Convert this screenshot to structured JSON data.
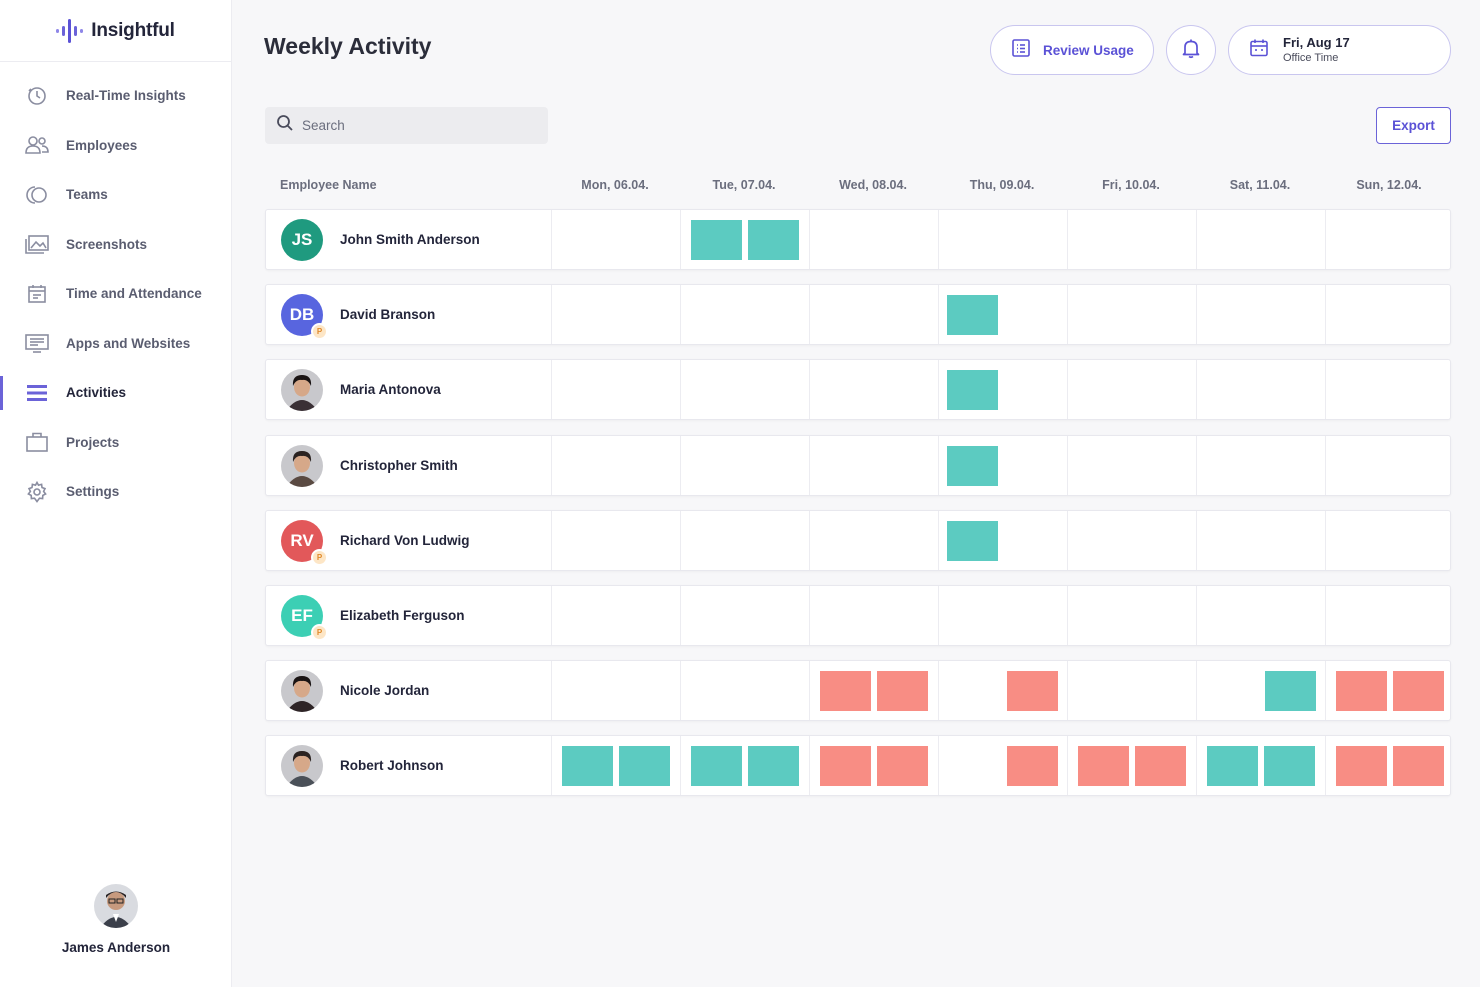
{
  "app": {
    "name": "Insightful"
  },
  "colors": {
    "accent": "#5b52d6",
    "productive": "#5ccbc1",
    "unproductive": "#f88d84"
  },
  "sidebar": {
    "items": [
      {
        "label": "Real-Time Insights",
        "icon": "clock-icon",
        "active": false
      },
      {
        "label": "Employees",
        "icon": "users-icon",
        "active": false
      },
      {
        "label": "Teams",
        "icon": "teams-icon",
        "active": false
      },
      {
        "label": "Screenshots",
        "icon": "image-icon",
        "active": false
      },
      {
        "label": "Time and Attendance",
        "icon": "calendar-icon",
        "active": false
      },
      {
        "label": "Apps and Websites",
        "icon": "monitor-icon",
        "active": false
      },
      {
        "label": "Activities",
        "icon": "list-icon",
        "active": true
      },
      {
        "label": "Projects",
        "icon": "briefcase-icon",
        "active": false
      },
      {
        "label": "Settings",
        "icon": "gear-icon",
        "active": false
      }
    ],
    "user": {
      "name": "James Anderson"
    }
  },
  "header": {
    "title": "Weekly Activity",
    "review_label": "Review Usage",
    "date_main": "Fri, Aug 17",
    "date_sub": "Office Time"
  },
  "search": {
    "placeholder": "Search"
  },
  "export_label": "Export",
  "table": {
    "name_header": "Employee Name",
    "days": [
      "Mon, 06.04.",
      "Tue, 07.04.",
      "Wed, 08.04.",
      "Thu, 09.04.",
      "Fri, 10.04.",
      "Sat, 11.04.",
      "Sun, 12.04."
    ],
    "rows": [
      {
        "name": "John Smith Anderson",
        "initials": "JS",
        "avatar_color": "#1f9a7f",
        "badge": "",
        "activity": [
          [],
          [
            "teal",
            "teal"
          ],
          [],
          [],
          [],
          [],
          []
        ]
      },
      {
        "name": "David Branson",
        "initials": "DB",
        "avatar_color": "#5865df",
        "badge": "P",
        "activity": [
          [],
          [],
          [],
          [
            "teal"
          ],
          [],
          [],
          []
        ]
      },
      {
        "name": "Maria Antonova",
        "initials": "",
        "avatar_color": "#3a3035",
        "badge": "",
        "activity": [
          [],
          [],
          [],
          [
            "teal"
          ],
          [],
          [],
          []
        ]
      },
      {
        "name": "Christopher Smith",
        "initials": "",
        "avatar_color": "#5a4a42",
        "badge": "",
        "activity": [
          [],
          [],
          [],
          [
            "teal"
          ],
          [],
          [],
          []
        ]
      },
      {
        "name": "Richard Von Ludwig",
        "initials": "RV",
        "avatar_color": "#e2585a",
        "badge": "P",
        "activity": [
          [],
          [],
          [],
          [
            "teal"
          ],
          [],
          [],
          []
        ]
      },
      {
        "name": "Elizabeth Ferguson",
        "initials": "EF",
        "avatar_color": "#3ccfb4",
        "badge": "P",
        "activity": [
          [],
          [],
          [],
          [],
          [],
          [],
          []
        ]
      },
      {
        "name": "Nicole Jordan",
        "initials": "",
        "avatar_color": "#2e2426",
        "badge": "",
        "activity": [
          [],
          [],
          [
            "coral",
            "coral"
          ],
          [
            "coral-right"
          ],
          [],
          [
            "teal-right"
          ],
          [
            "coral",
            "coral"
          ]
        ]
      },
      {
        "name": "Robert Johnson",
        "initials": "",
        "avatar_color": "#4a5058",
        "badge": "",
        "activity": [
          [
            "teal",
            "teal"
          ],
          [
            "teal",
            "teal"
          ],
          [
            "coral",
            "coral"
          ],
          [
            "coral-right"
          ],
          [
            "coral",
            "coral"
          ],
          [
            "teal",
            "teal"
          ],
          [
            "coral",
            "coral"
          ]
        ]
      }
    ]
  }
}
